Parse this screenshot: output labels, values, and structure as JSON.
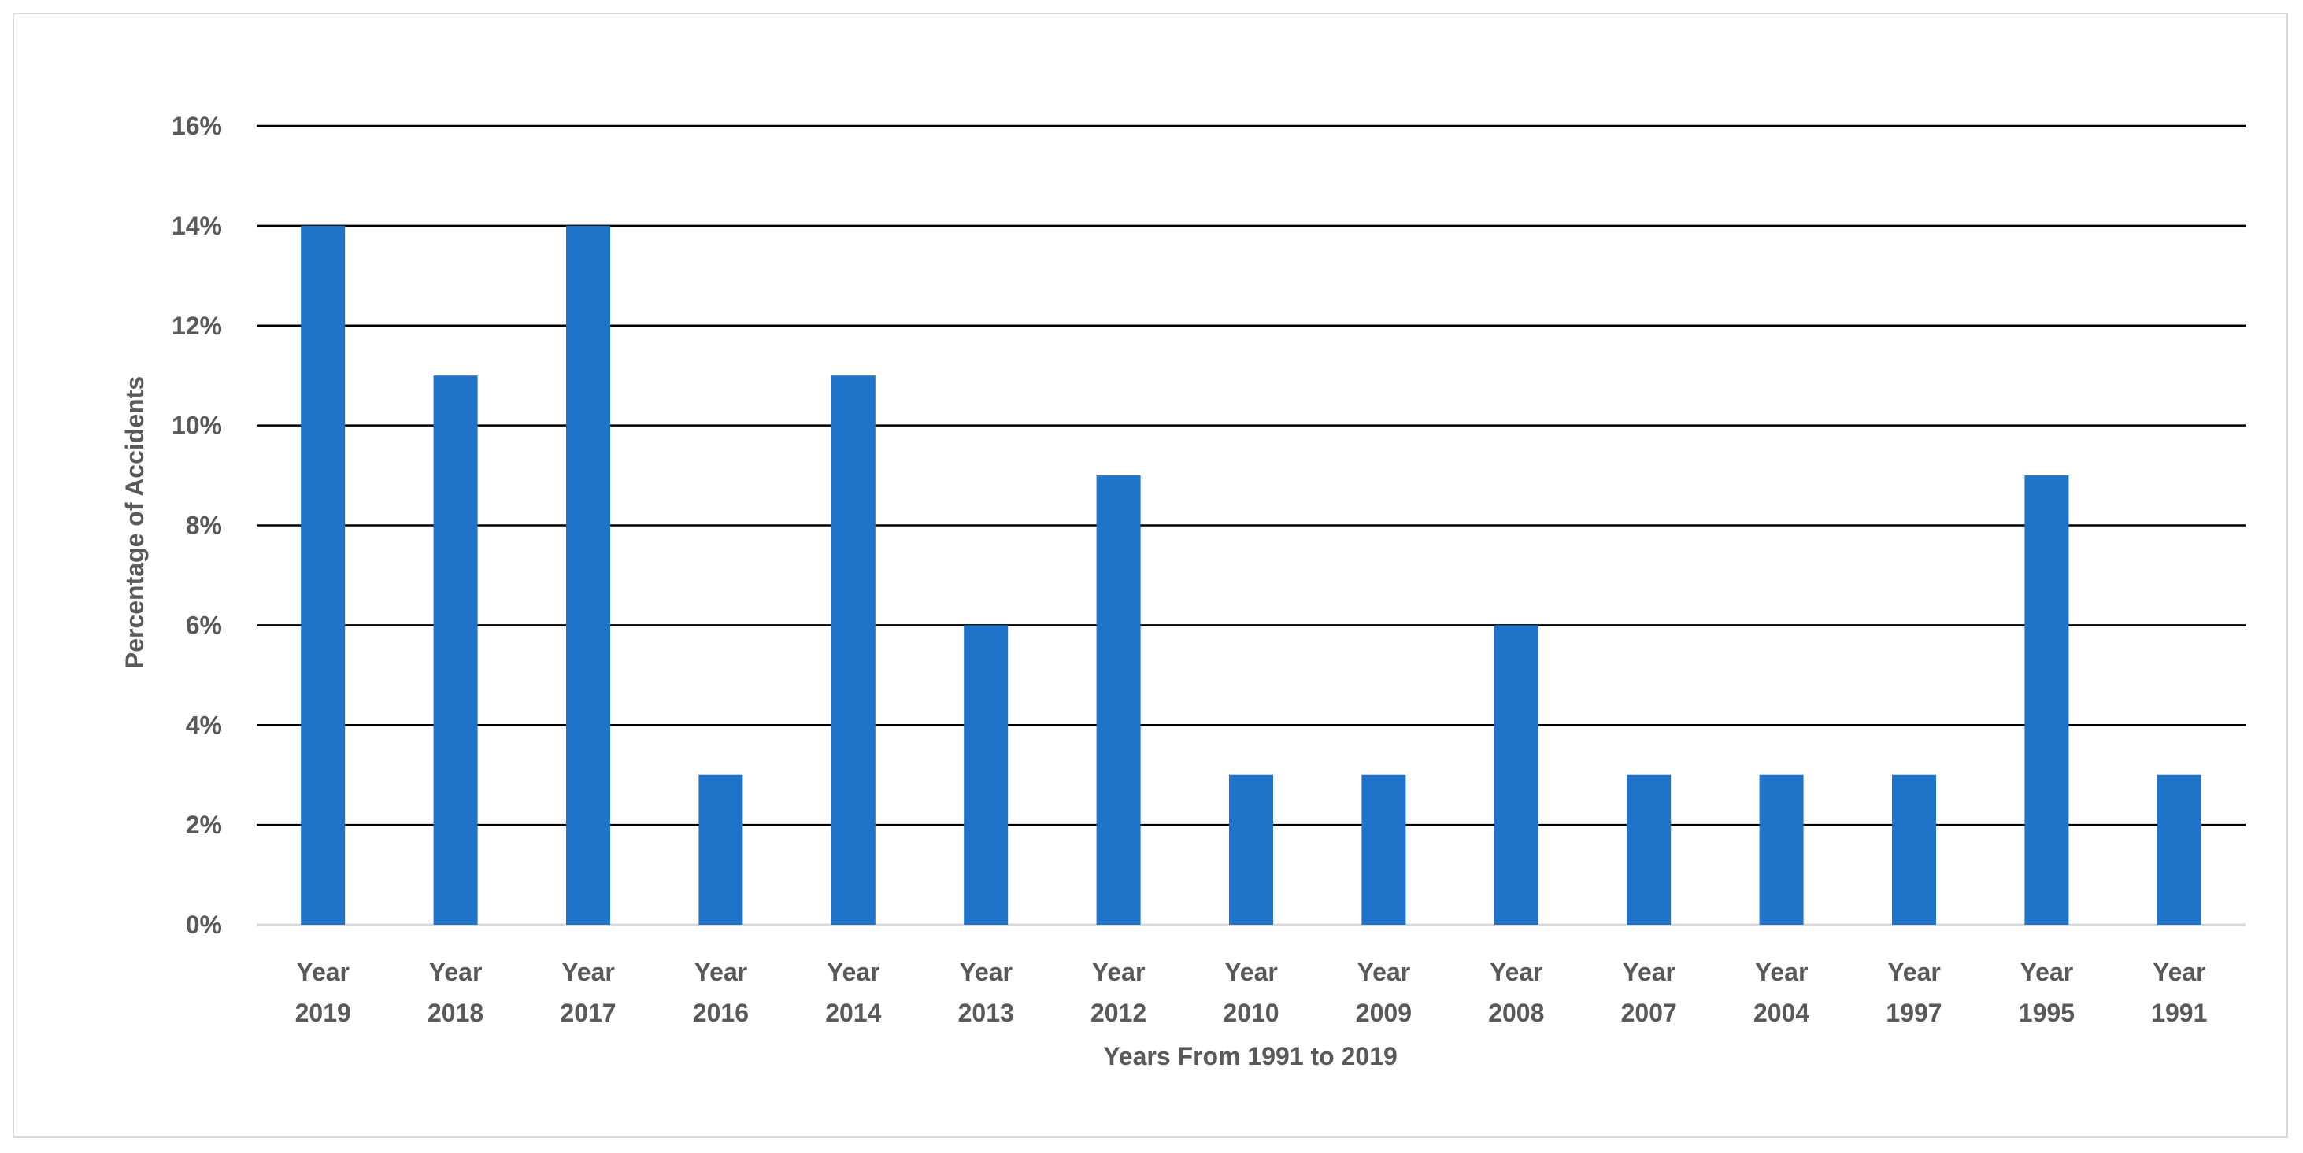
{
  "chart_data": {
    "type": "bar",
    "xlabel": "Years From 1991 to 2019",
    "ylabel": "Percentage of Accidents",
    "categories": [
      [
        "Year",
        "2019"
      ],
      [
        "Year",
        "2018"
      ],
      [
        "Year",
        "2017"
      ],
      [
        "Year",
        "2016"
      ],
      [
        "Year",
        "2014"
      ],
      [
        "Year",
        "2013"
      ],
      [
        "Year",
        "2012"
      ],
      [
        "Year",
        "2010"
      ],
      [
        "Year",
        "2009"
      ],
      [
        "Year",
        "2008"
      ],
      [
        "Year",
        "2007"
      ],
      [
        "Year",
        "2004"
      ],
      [
        "Year",
        "1997"
      ],
      [
        "Year",
        "1995"
      ],
      [
        "Year",
        "1991"
      ]
    ],
    "values": [
      14,
      11,
      14,
      3,
      11,
      6,
      9,
      3,
      3,
      6,
      3,
      3,
      3,
      9,
      3
    ],
    "ylim": [
      0,
      16
    ],
    "yticks": [
      0,
      2,
      4,
      6,
      8,
      10,
      12,
      14,
      16
    ],
    "ytick_labels": [
      "0%",
      "2%",
      "4%",
      "6%",
      "8%",
      "10%",
      "12%",
      "14%",
      "16%"
    ],
    "grid": true,
    "legend": "none",
    "colors": {
      "bar": "#1f73c9",
      "gridline": "#000000",
      "baseline": "#d9d9d9",
      "text": "#595959",
      "frame": "#d9d9d9"
    }
  }
}
